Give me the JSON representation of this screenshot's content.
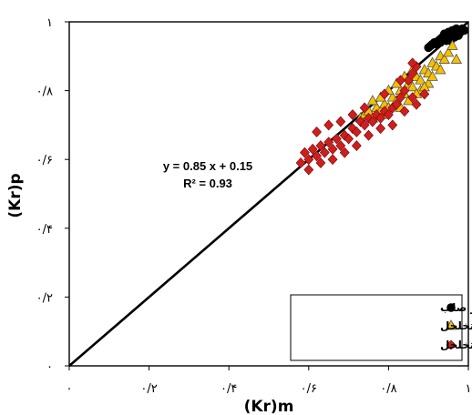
{
  "chart_data": {
    "type": "scatter",
    "xlabel": "(Kr)m",
    "ylabel": "(Kr)p",
    "xlim": [
      0,
      1
    ],
    "ylim": [
      0,
      1
    ],
    "grid": false,
    "legend_position": "bottom-right",
    "x_tick_labels": [
      "۰",
      "۰/۲",
      "۰/۴",
      "۰/۶",
      "۰/۸",
      "۱"
    ],
    "y_tick_labels": [
      "۰",
      "۰/۲",
      "۰/۴",
      "۰/۶",
      "۰/۸",
      "۱"
    ],
    "tick_values": [
      0,
      0.2,
      0.4,
      0.6,
      0.8,
      1
    ],
    "fit_line": {
      "slope": 0.85,
      "intercept": 0.15,
      "x_from": 0.0,
      "x_to": 1.0
    },
    "annotation": {
      "line1": "y = 0.85 x + 0.15",
      "line2": "R² = 0.93"
    },
    "series": [
      {
        "name": "دیوار صلب",
        "marker": "circle",
        "color": "#000000",
        "points": [
          [
            0.9,
            0.925
          ],
          [
            0.905,
            0.93
          ],
          [
            0.91,
            0.935
          ],
          [
            0.915,
            0.94
          ],
          [
            0.92,
            0.935
          ],
          [
            0.925,
            0.945
          ],
          [
            0.93,
            0.95
          ],
          [
            0.935,
            0.955
          ],
          [
            0.94,
            0.95
          ],
          [
            0.945,
            0.96
          ],
          [
            0.95,
            0.955
          ],
          [
            0.955,
            0.965
          ],
          [
            0.96,
            0.96
          ],
          [
            0.965,
            0.97
          ],
          [
            0.97,
            0.965
          ],
          [
            0.975,
            0.975
          ],
          [
            0.98,
            0.97
          ],
          [
            0.985,
            0.98
          ],
          [
            0.96,
            0.975
          ],
          [
            0.95,
            0.97
          ],
          [
            0.94,
            0.965
          ],
          [
            0.93,
            0.94
          ],
          [
            0.97,
            0.98
          ],
          [
            0.99,
            0.975
          ],
          [
            0.955,
            0.945
          ],
          [
            0.965,
            0.955
          ],
          [
            0.975,
            0.96
          ],
          [
            0.945,
            0.945
          ]
        ]
      },
      {
        "name": "دیوار نیمه متخلخل",
        "marker": "triangle",
        "color": "#f5c000",
        "points": [
          [
            0.73,
            0.72
          ],
          [
            0.74,
            0.73
          ],
          [
            0.75,
            0.74
          ],
          [
            0.76,
            0.72
          ],
          [
            0.77,
            0.75
          ],
          [
            0.78,
            0.74
          ],
          [
            0.79,
            0.76
          ],
          [
            0.8,
            0.75
          ],
          [
            0.81,
            0.78
          ],
          [
            0.82,
            0.77
          ],
          [
            0.83,
            0.8
          ],
          [
            0.84,
            0.79
          ],
          [
            0.85,
            0.82
          ],
          [
            0.86,
            0.81
          ],
          [
            0.87,
            0.84
          ],
          [
            0.88,
            0.83
          ],
          [
            0.89,
            0.86
          ],
          [
            0.9,
            0.85
          ],
          [
            0.91,
            0.88
          ],
          [
            0.92,
            0.87
          ],
          [
            0.93,
            0.9
          ],
          [
            0.94,
            0.89
          ],
          [
            0.95,
            0.91
          ],
          [
            0.97,
            0.89
          ],
          [
            0.8,
            0.8
          ],
          [
            0.82,
            0.82
          ],
          [
            0.84,
            0.84
          ],
          [
            0.86,
            0.86
          ],
          [
            0.88,
            0.8
          ],
          [
            0.9,
            0.82
          ],
          [
            0.76,
            0.77
          ],
          [
            0.78,
            0.78
          ],
          [
            0.85,
            0.77
          ],
          [
            0.87,
            0.79
          ],
          [
            0.89,
            0.81
          ],
          [
            0.91,
            0.84
          ],
          [
            0.93,
            0.86
          ],
          [
            0.79,
            0.73
          ],
          [
            0.83,
            0.75
          ],
          [
            0.96,
            0.93
          ]
        ]
      },
      {
        "name": "دیوار متخلخل",
        "marker": "diamond",
        "color": "#cc1f1f",
        "points": [
          [
            0.58,
            0.59
          ],
          [
            0.59,
            0.62
          ],
          [
            0.6,
            0.6
          ],
          [
            0.61,
            0.63
          ],
          [
            0.62,
            0.61
          ],
          [
            0.63,
            0.64
          ],
          [
            0.64,
            0.62
          ],
          [
            0.65,
            0.65
          ],
          [
            0.66,
            0.63
          ],
          [
            0.67,
            0.66
          ],
          [
            0.68,
            0.64
          ],
          [
            0.69,
            0.67
          ],
          [
            0.7,
            0.66
          ],
          [
            0.71,
            0.69
          ],
          [
            0.72,
            0.68
          ],
          [
            0.73,
            0.71
          ],
          [
            0.74,
            0.7
          ],
          [
            0.75,
            0.72
          ],
          [
            0.76,
            0.71
          ],
          [
            0.77,
            0.73
          ],
          [
            0.78,
            0.72
          ],
          [
            0.79,
            0.74
          ],
          [
            0.8,
            0.73
          ],
          [
            0.81,
            0.75
          ],
          [
            0.82,
            0.76
          ],
          [
            0.83,
            0.78
          ],
          [
            0.84,
            0.8
          ],
          [
            0.85,
            0.83
          ],
          [
            0.86,
            0.85
          ],
          [
            0.87,
            0.87
          ],
          [
            0.62,
            0.68
          ],
          [
            0.65,
            0.7
          ],
          [
            0.68,
            0.71
          ],
          [
            0.71,
            0.73
          ],
          [
            0.74,
            0.75
          ],
          [
            0.6,
            0.57
          ],
          [
            0.63,
            0.59
          ],
          [
            0.66,
            0.6
          ],
          [
            0.69,
            0.62
          ],
          [
            0.72,
            0.64
          ],
          [
            0.75,
            0.67
          ],
          [
            0.78,
            0.69
          ],
          [
            0.81,
            0.7
          ],
          [
            0.84,
            0.74
          ],
          [
            0.87,
            0.76
          ],
          [
            0.89,
            0.79
          ],
          [
            0.86,
            0.78
          ],
          [
            0.79,
            0.79
          ],
          [
            0.83,
            0.83
          ],
          [
            0.86,
            0.88
          ]
        ]
      }
    ]
  }
}
